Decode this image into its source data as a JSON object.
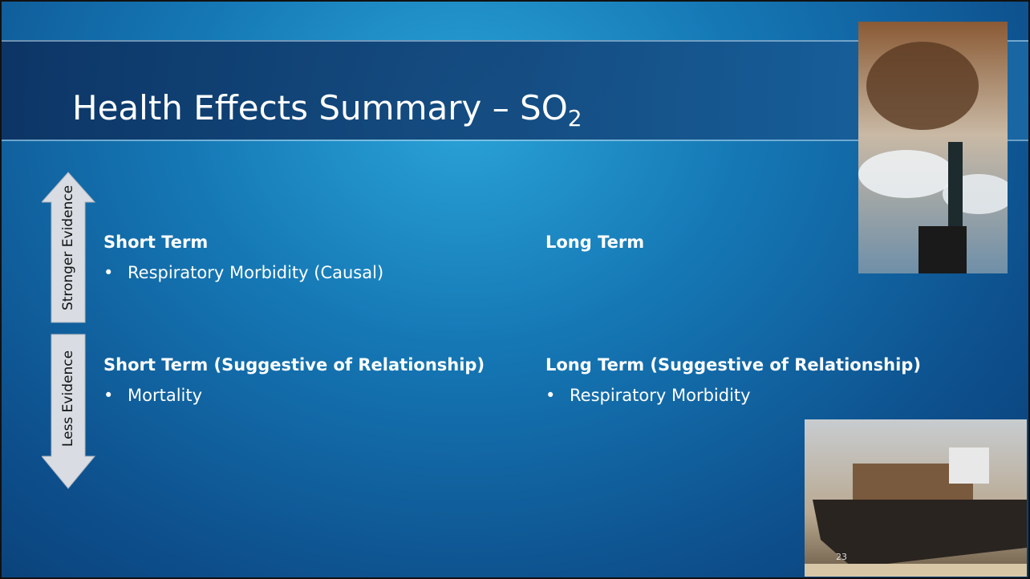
{
  "slide": {
    "title": {
      "text": "Health Effects Summary – SO",
      "subscript": "2"
    },
    "evidence_scale": {
      "upper": "Stronger Evidence",
      "lower": "Less Evidence"
    },
    "sections": [
      {
        "heading": "Short Term",
        "bullets": [
          "Respiratory Morbidity (Causal)"
        ]
      },
      {
        "heading": "Long Term",
        "bullets": []
      },
      {
        "heading": "Short Term (Suggestive of Relationship)",
        "bullets": [
          "Mortality"
        ]
      },
      {
        "heading": "Long Term (Suggestive of Relationship)",
        "bullets": [
          "Respiratory Morbidity"
        ]
      }
    ],
    "page_number": "23"
  }
}
